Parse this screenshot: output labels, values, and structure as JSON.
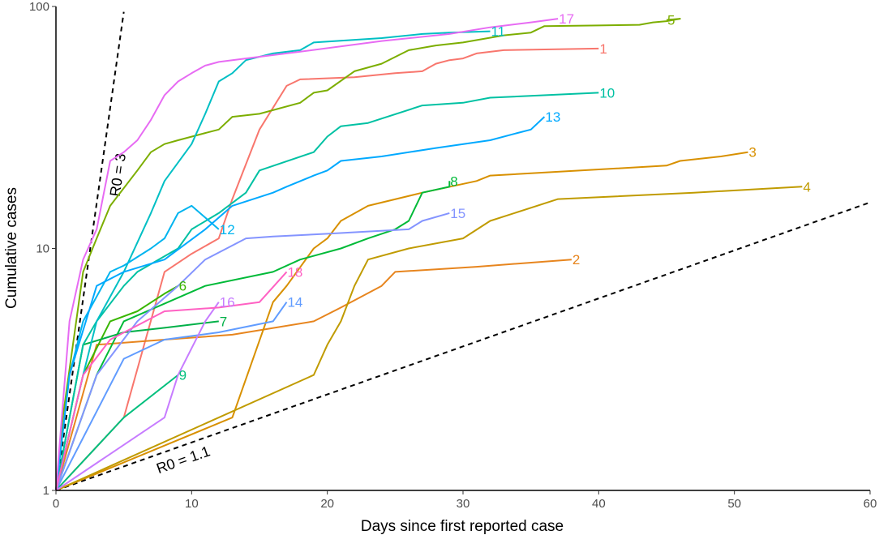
{
  "chart_data": {
    "type": "line",
    "xlabel": "Days since first reported case",
    "ylabel": "Cumulative cases",
    "xlim": [
      0,
      60
    ],
    "ylim": [
      1,
      100
    ],
    "yscale": "log10",
    "x_ticks": [
      "0",
      "10",
      "20",
      "30",
      "40",
      "50",
      "60"
    ],
    "y_ticks": [
      "1",
      "10",
      "100"
    ],
    "grid": false,
    "legend": "none (series labelled at line ends)",
    "reference_lines": [
      {
        "label": "R0 = 3",
        "style": "dashed",
        "points": [
          [
            0,
            1
          ],
          [
            5,
            95
          ]
        ]
      },
      {
        "label": "R0 = 1.1",
        "style": "dashed",
        "points": [
          [
            0,
            1
          ],
          [
            60,
            15.5
          ]
        ]
      }
    ],
    "series": [
      {
        "name": "1",
        "color": "#F8766D",
        "points": [
          [
            0,
            1
          ],
          [
            5,
            2
          ],
          [
            8,
            8
          ],
          [
            10,
            9.5
          ],
          [
            12,
            11
          ],
          [
            13,
            16
          ],
          [
            15,
            31
          ],
          [
            17,
            47
          ],
          [
            18,
            50
          ],
          [
            22,
            51
          ],
          [
            25,
            53
          ],
          [
            27,
            54
          ],
          [
            28,
            58
          ],
          [
            29,
            60
          ],
          [
            30,
            61
          ],
          [
            31,
            64
          ],
          [
            33,
            66
          ],
          [
            40,
            67
          ]
        ]
      },
      {
        "name": "2",
        "color": "#E7851E",
        "points": [
          [
            0,
            1
          ],
          [
            3,
            4
          ],
          [
            8,
            4.2
          ],
          [
            13,
            4.4
          ],
          [
            19,
            5
          ],
          [
            21,
            5.7
          ],
          [
            24,
            7
          ],
          [
            25,
            8
          ],
          [
            31,
            8.4
          ],
          [
            38,
            9
          ]
        ]
      },
      {
        "name": "3",
        "color": "#D89000",
        "points": [
          [
            0,
            1
          ],
          [
            13,
            2
          ],
          [
            16,
            6
          ],
          [
            17,
            7
          ],
          [
            19,
            10
          ],
          [
            20,
            11
          ],
          [
            21,
            13
          ],
          [
            23,
            15
          ],
          [
            27,
            17
          ],
          [
            31,
            19
          ],
          [
            32,
            20
          ],
          [
            45,
            22
          ],
          [
            46,
            23
          ],
          [
            49,
            24
          ],
          [
            51,
            25
          ]
        ]
      },
      {
        "name": "4",
        "color": "#C09B00",
        "points": [
          [
            0,
            1
          ],
          [
            19,
            3
          ],
          [
            20,
            4
          ],
          [
            21,
            5
          ],
          [
            22,
            7
          ],
          [
            23,
            9
          ],
          [
            26,
            10
          ],
          [
            30,
            11
          ],
          [
            32,
            13
          ],
          [
            37,
            16
          ],
          [
            47,
            17
          ],
          [
            55,
            18
          ]
        ]
      },
      {
        "name": "5",
        "color": "#7CAE00",
        "points": [
          [
            0,
            1
          ],
          [
            0.5,
            2
          ],
          [
            2,
            8
          ],
          [
            3,
            11
          ],
          [
            4,
            15
          ],
          [
            6,
            21
          ],
          [
            7,
            25
          ],
          [
            8,
            27
          ],
          [
            9,
            28
          ],
          [
            11,
            30
          ],
          [
            12,
            31
          ],
          [
            13,
            35
          ],
          [
            15,
            36
          ],
          [
            18,
            40
          ],
          [
            19,
            44
          ],
          [
            20,
            45
          ],
          [
            22,
            54
          ],
          [
            24,
            58
          ],
          [
            26,
            66
          ],
          [
            28,
            69
          ],
          [
            30,
            71
          ],
          [
            33,
            76
          ],
          [
            35,
            78
          ],
          [
            36,
            83
          ],
          [
            40,
            83.5
          ],
          [
            43,
            84
          ],
          [
            44,
            86
          ],
          [
            45,
            87
          ],
          [
            46,
            89
          ],
          [
            45,
            88
          ]
        ]
      },
      {
        "name": "6",
        "color": "#39B600",
        "points": [
          [
            0,
            1
          ],
          [
            2,
            3
          ],
          [
            4,
            5
          ],
          [
            6,
            5.5
          ],
          [
            8,
            6.5
          ],
          [
            9,
            7
          ]
        ]
      },
      {
        "name": "7",
        "color": "#00B048",
        "points": [
          [
            0,
            1
          ],
          [
            2,
            4
          ],
          [
            5,
            4.5
          ],
          [
            8,
            4.7
          ],
          [
            12,
            5
          ]
        ]
      },
      {
        "name": "8",
        "color": "#00BA38",
        "points": [
          [
            0,
            1
          ],
          [
            3,
            3
          ],
          [
            5,
            5
          ],
          [
            11,
            7
          ],
          [
            16,
            8
          ],
          [
            18,
            9
          ],
          [
            21,
            10
          ],
          [
            23,
            11
          ],
          [
            25,
            12
          ],
          [
            26,
            13
          ],
          [
            27,
            17
          ],
          [
            29,
            18
          ],
          [
            29,
            19
          ]
        ]
      },
      {
        "name": "9",
        "color": "#00BF7D",
        "points": [
          [
            0,
            1
          ],
          [
            5,
            2
          ],
          [
            9,
            3
          ]
        ]
      },
      {
        "name": "10",
        "color": "#00C1A3",
        "points": [
          [
            0,
            1
          ],
          [
            2,
            4
          ],
          [
            3,
            5
          ],
          [
            5,
            7
          ],
          [
            6,
            8
          ],
          [
            9,
            10
          ],
          [
            10,
            12
          ],
          [
            12,
            14
          ],
          [
            14,
            17
          ],
          [
            15,
            21
          ],
          [
            19,
            25
          ],
          [
            20,
            29
          ],
          [
            21,
            32
          ],
          [
            23,
            33
          ],
          [
            27,
            39
          ],
          [
            30,
            40
          ],
          [
            32,
            42
          ],
          [
            40,
            44
          ]
        ]
      },
      {
        "name": "11",
        "color": "#00BFC4",
        "points": [
          [
            0,
            1
          ],
          [
            2,
            3
          ],
          [
            3,
            5
          ],
          [
            5,
            8
          ],
          [
            7,
            14
          ],
          [
            8,
            19
          ],
          [
            10,
            27
          ],
          [
            11,
            36
          ],
          [
            12,
            49
          ],
          [
            13,
            53
          ],
          [
            14,
            60
          ],
          [
            16,
            64
          ],
          [
            18,
            66
          ],
          [
            19,
            71
          ],
          [
            24,
            74
          ],
          [
            27,
            77
          ],
          [
            29,
            78
          ],
          [
            32,
            79
          ]
        ]
      },
      {
        "name": "12",
        "color": "#00B4EF",
        "points": [
          [
            0,
            1
          ],
          [
            1,
            3
          ],
          [
            2,
            5
          ],
          [
            4,
            8
          ],
          [
            5,
            8.5
          ],
          [
            7,
            10
          ],
          [
            8,
            11
          ],
          [
            9,
            14
          ],
          [
            10,
            15
          ],
          [
            12,
            12
          ]
        ]
      },
      {
        "name": "13",
        "color": "#00A9FF",
        "points": [
          [
            0,
            1
          ],
          [
            1,
            3
          ],
          [
            3,
            7
          ],
          [
            5,
            8
          ],
          [
            8,
            9
          ],
          [
            11,
            12
          ],
          [
            13,
            15
          ],
          [
            16,
            17
          ],
          [
            17,
            18
          ],
          [
            19,
            20
          ],
          [
            20,
            21
          ],
          [
            21,
            23
          ],
          [
            24,
            24
          ],
          [
            28,
            26
          ],
          [
            32,
            28
          ],
          [
            34,
            30
          ],
          [
            35,
            31
          ],
          [
            36,
            35
          ]
        ]
      },
      {
        "name": "14",
        "color": "#619CFF",
        "points": [
          [
            0,
            1
          ],
          [
            5,
            3.5
          ],
          [
            8,
            4.2
          ],
          [
            12,
            4.5
          ],
          [
            16,
            5
          ],
          [
            17,
            6
          ]
        ]
      },
      {
        "name": "15",
        "color": "#8494FF",
        "points": [
          [
            0,
            1
          ],
          [
            3,
            3
          ],
          [
            6,
            5
          ],
          [
            9,
            7
          ],
          [
            11,
            9
          ],
          [
            14,
            11
          ],
          [
            16,
            11.2
          ],
          [
            20,
            11.5
          ],
          [
            26,
            12
          ],
          [
            27,
            13
          ],
          [
            29,
            14
          ]
        ]
      },
      {
        "name": "16",
        "color": "#C77CFF",
        "points": [
          [
            0,
            1
          ],
          [
            8,
            2
          ],
          [
            9,
            3
          ],
          [
            11,
            5
          ],
          [
            12,
            6
          ]
        ]
      },
      {
        "name": "17",
        "color": "#E76BF3",
        "points": [
          [
            0,
            1
          ],
          [
            1,
            5
          ],
          [
            2,
            9
          ],
          [
            3,
            12
          ],
          [
            4,
            23
          ],
          [
            5,
            25
          ],
          [
            6,
            28
          ],
          [
            7,
            34
          ],
          [
            8,
            43
          ],
          [
            9,
            49
          ],
          [
            10,
            53
          ],
          [
            11,
            57
          ],
          [
            12,
            59
          ],
          [
            14,
            61
          ],
          [
            18,
            65
          ],
          [
            24,
            72
          ],
          [
            29,
            77
          ],
          [
            32,
            82
          ],
          [
            35,
            86
          ],
          [
            37,
            89
          ]
        ]
      },
      {
        "name": "18",
        "color": "#FF61C3",
        "points": [
          [
            0,
            1
          ],
          [
            2,
            3
          ],
          [
            4,
            4.2
          ],
          [
            8,
            5.5
          ],
          [
            12,
            5.7
          ],
          [
            15,
            6
          ],
          [
            17,
            8
          ]
        ]
      }
    ]
  }
}
